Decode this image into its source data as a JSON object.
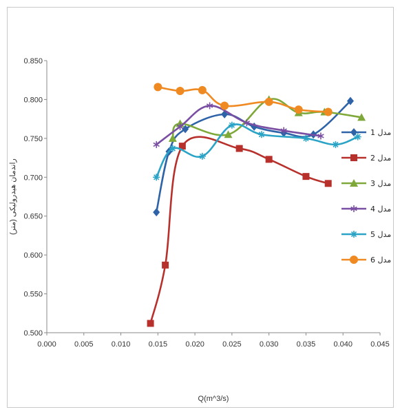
{
  "chart_data": {
    "type": "line",
    "title": "",
    "xlabel": "Q(m^3/s)",
    "ylabel": "راندمان هیدرولیکی (متر)",
    "xlim": [
      0.0,
      0.045
    ],
    "ylim": [
      0.5,
      0.85
    ],
    "x_ticks": [
      "0.000",
      "0.005",
      "0.010",
      "0.015",
      "0.020",
      "0.025",
      "0.030",
      "0.035",
      "0.040",
      "0.045"
    ],
    "y_ticks": [
      "0.850",
      "0.800",
      "0.750",
      "0.700",
      "0.650",
      "0.600",
      "0.550",
      "0.500"
    ],
    "grid": false,
    "legend_position": "right",
    "series": [
      {
        "name": "مدل 1",
        "color": "#2e63a8",
        "marker": "diamond",
        "x": [
          0.0148,
          0.0165,
          0.0187,
          0.024,
          0.028,
          0.032,
          0.036,
          0.041
        ],
        "y": [
          0.655,
          0.733,
          0.762,
          0.781,
          0.765,
          0.757,
          0.755,
          0.798
        ]
      },
      {
        "name": "مدل 2",
        "color": "#b8302b",
        "marker": "square",
        "x": [
          0.014,
          0.016,
          0.0183,
          0.026,
          0.03,
          0.035,
          0.038
        ],
        "y": [
          0.512,
          0.587,
          0.74,
          0.737,
          0.723,
          0.701,
          0.692
        ]
      },
      {
        "name": "مدل 3",
        "color": "#7ea83a",
        "marker": "triangle",
        "x": [
          0.017,
          0.018,
          0.0245,
          0.03,
          0.034,
          0.0375,
          0.0425
        ],
        "y": [
          0.75,
          0.769,
          0.755,
          0.8,
          0.783,
          0.784,
          0.777
        ]
      },
      {
        "name": "مدل 4",
        "color": "#7a4ea3",
        "marker": "star",
        "x": [
          0.0148,
          0.018,
          0.022,
          0.027,
          0.032,
          0.037
        ],
        "y": [
          0.742,
          0.765,
          0.792,
          0.77,
          0.76,
          0.753
        ]
      },
      {
        "name": "مدل 5",
        "color": "#2aa3c6",
        "marker": "asterisk",
        "x": [
          0.0148,
          0.017,
          0.021,
          0.025,
          0.029,
          0.035,
          0.039,
          0.042
        ],
        "y": [
          0.7,
          0.737,
          0.727,
          0.767,
          0.755,
          0.75,
          0.742,
          0.752
        ]
      },
      {
        "name": "مدل 6",
        "color": "#ef8a23",
        "marker": "circle",
        "x": [
          0.015,
          0.018,
          0.021,
          0.024,
          0.03,
          0.034,
          0.038
        ],
        "y": [
          0.816,
          0.811,
          0.812,
          0.792,
          0.797,
          0.787,
          0.784
        ]
      }
    ]
  }
}
